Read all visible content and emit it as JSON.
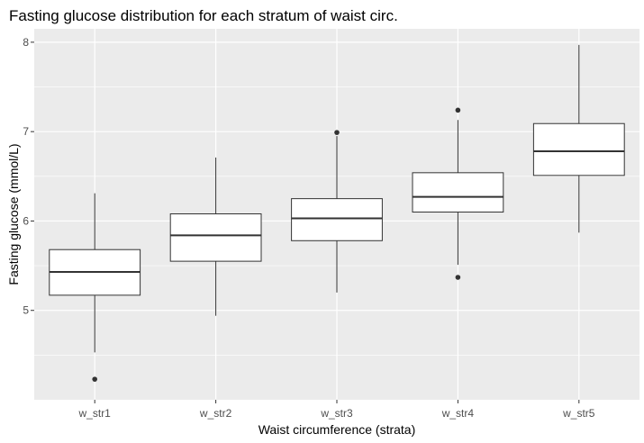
{
  "chart_data": {
    "type": "boxplot",
    "title": "Fasting glucose distribution for each stratum of waist circ.",
    "xlabel": "Waist circumference (strata)",
    "ylabel": "Fasting glucose (mmol/L)",
    "ylim": [
      4.0,
      8.15
    ],
    "yticks": [
      5,
      6,
      7,
      8
    ],
    "grid": true,
    "legend": "none",
    "colors": {
      "panel_background": "#ebebeb",
      "grid_line": "#ffffff",
      "box_fill": "#ffffff",
      "box_stroke": "#333333",
      "outlier": "#333333"
    },
    "categories": [
      "w_str1",
      "w_str2",
      "w_str3",
      "w_str4",
      "w_str5"
    ],
    "boxes": [
      {
        "category": "w_str1",
        "whisker_low": 4.53,
        "q1": 5.17,
        "median": 5.43,
        "q3": 5.68,
        "whisker_high": 6.31,
        "outliers": [
          4.23
        ]
      },
      {
        "category": "w_str2",
        "whisker_low": 4.94,
        "q1": 5.55,
        "median": 5.84,
        "q3": 6.08,
        "whisker_high": 6.71,
        "outliers": []
      },
      {
        "category": "w_str3",
        "whisker_low": 5.2,
        "q1": 5.78,
        "median": 6.03,
        "q3": 6.25,
        "whisker_high": 6.95,
        "outliers": [
          6.99
        ]
      },
      {
        "category": "w_str4",
        "whisker_low": 5.51,
        "q1": 6.1,
        "median": 6.27,
        "q3": 6.54,
        "whisker_high": 7.13,
        "outliers": [
          7.24,
          5.37
        ]
      },
      {
        "category": "w_str5",
        "whisker_low": 5.87,
        "q1": 6.51,
        "median": 6.78,
        "q3": 7.09,
        "whisker_high": 7.97,
        "outliers": []
      }
    ]
  }
}
